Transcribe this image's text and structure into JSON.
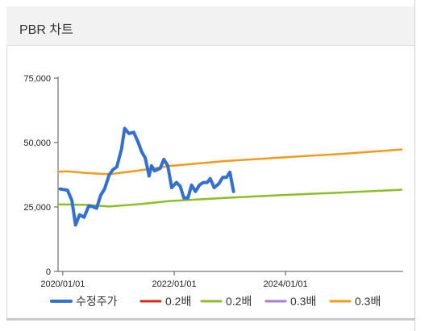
{
  "header": {
    "title": "PBR 차트"
  },
  "chart_data": {
    "type": "line",
    "title": "PBR 차트",
    "xlabel": "",
    "ylabel": "",
    "x_ticks": [
      "2020/01/01",
      "2022/01/01",
      "2024/01/01"
    ],
    "y_ticks": [
      "0",
      "25,000",
      "50,000",
      "75,000"
    ],
    "ylim": [
      0,
      75000
    ],
    "xlim": [
      "2019-12-01",
      "2026-01-31"
    ],
    "grid": false,
    "legend_position": "bottom",
    "series": [
      {
        "name": "수정주가",
        "color": "#2f6fd6",
        "points": [
          [
            "2019-12-15",
            32000
          ],
          [
            "2020-02-01",
            31500
          ],
          [
            "2020-03-01",
            27500
          ],
          [
            "2020-03-25",
            18000
          ],
          [
            "2020-04-20",
            22000
          ],
          [
            "2020-05-20",
            21000
          ],
          [
            "2020-06-20",
            25500
          ],
          [
            "2020-07-20",
            25000
          ],
          [
            "2020-08-10",
            24500
          ],
          [
            "2020-09-05",
            29500
          ],
          [
            "2020-10-01",
            32000
          ],
          [
            "2020-11-01",
            37500
          ],
          [
            "2020-11-25",
            39500
          ],
          [
            "2020-12-20",
            40500
          ],
          [
            "2021-01-20",
            47500
          ],
          [
            "2021-02-10",
            55500
          ],
          [
            "2021-03-10",
            53500
          ],
          [
            "2021-04-10",
            54000
          ],
          [
            "2021-05-10",
            50000
          ],
          [
            "2021-06-01",
            46500
          ],
          [
            "2021-06-25",
            44000
          ],
          [
            "2021-07-20",
            37000
          ],
          [
            "2021-08-05",
            41000
          ],
          [
            "2021-08-25",
            39000
          ],
          [
            "2021-10-01",
            40000
          ],
          [
            "2021-10-25",
            43500
          ],
          [
            "2021-11-20",
            41000
          ],
          [
            "2021-12-15",
            32500
          ],
          [
            "2022-01-15",
            34500
          ],
          [
            "2022-02-10",
            33000
          ],
          [
            "2022-03-05",
            28500
          ],
          [
            "2022-04-01",
            28500
          ],
          [
            "2022-04-25",
            33500
          ],
          [
            "2022-05-20",
            31000
          ],
          [
            "2022-06-15",
            33500
          ],
          [
            "2022-07-10",
            34500
          ],
          [
            "2022-08-05",
            34500
          ],
          [
            "2022-08-25",
            36000
          ],
          [
            "2022-09-20",
            32500
          ],
          [
            "2022-10-20",
            34000
          ],
          [
            "2022-11-15",
            36500
          ],
          [
            "2022-12-10",
            36500
          ],
          [
            "2023-01-01",
            38500
          ],
          [
            "2023-01-25",
            31000
          ]
        ]
      },
      {
        "name": "0.2배",
        "color": "#d62b1f",
        "points": []
      },
      {
        "name": "0.2배",
        "color": "#8cbf26",
        "points": [
          [
            "2019-12-01",
            26000
          ],
          [
            "2020-06-01",
            25800
          ],
          [
            "2020-11-01",
            25200
          ],
          [
            "2021-06-01",
            26200
          ],
          [
            "2021-12-01",
            27300
          ],
          [
            "2022-12-01",
            28500
          ],
          [
            "2024-01-01",
            29700
          ],
          [
            "2025-01-01",
            30600
          ],
          [
            "2026-01-31",
            31700
          ]
        ]
      },
      {
        "name": "0.3배",
        "color": "#a57fd4",
        "points": []
      },
      {
        "name": "0.3배",
        "color": "#f39a1a",
        "points": [
          [
            "2019-12-01",
            38700
          ],
          [
            "2020-02-01",
            38800
          ],
          [
            "2020-06-01",
            38200
          ],
          [
            "2020-11-01",
            37700
          ],
          [
            "2021-06-01",
            39300
          ],
          [
            "2021-12-01",
            40900
          ],
          [
            "2022-12-01",
            42800
          ],
          [
            "2024-01-01",
            44300
          ],
          [
            "2025-01-01",
            45600
          ],
          [
            "2026-01-31",
            47300
          ]
        ]
      }
    ]
  }
}
